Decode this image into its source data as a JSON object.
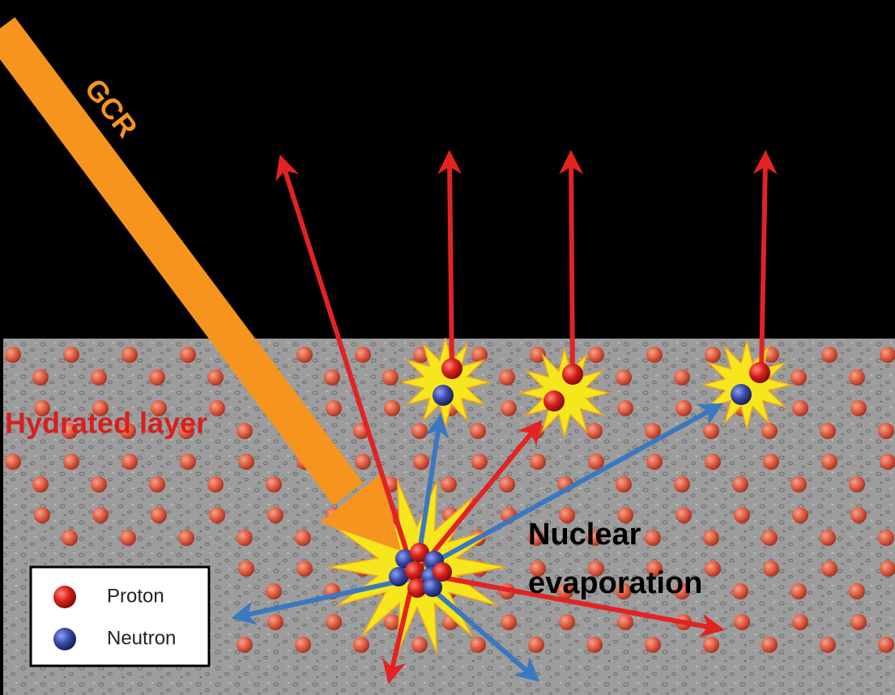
{
  "labels": {
    "gcr": "GCR",
    "layer": "Hydrated layer",
    "process": [
      "Nuclear",
      "evaporation"
    ]
  },
  "legend": [
    {
      "label": "Proton"
    },
    {
      "label": "Neutron"
    }
  ]
}
